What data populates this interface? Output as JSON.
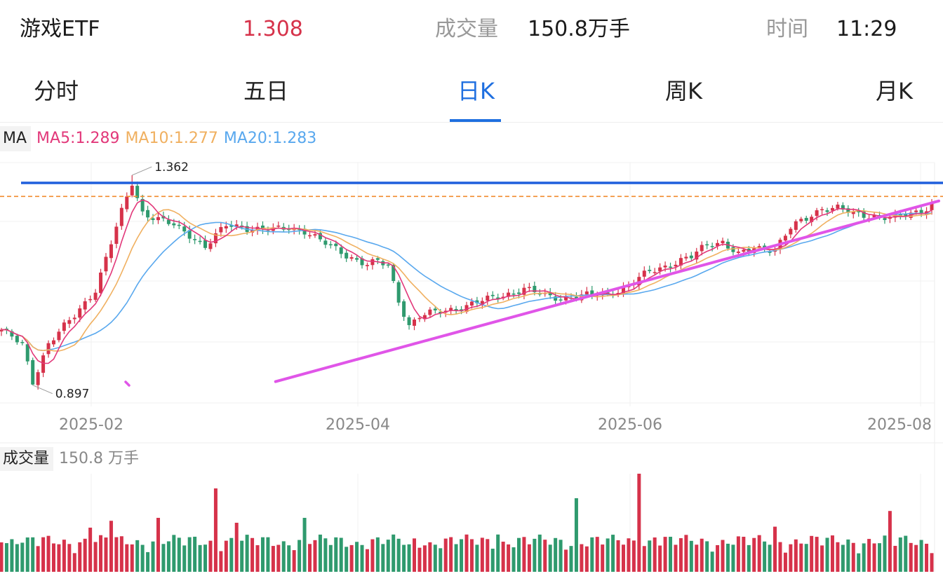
{
  "header": {
    "name": "游戏ETF",
    "price": "1.308",
    "volume_label": "成交量",
    "volume_value": "150.8万手",
    "time_label": "时间",
    "time_value": "11:29"
  },
  "colors": {
    "up": "#d6324a",
    "down": "#2f9a6e",
    "accent": "#1f6fe0",
    "price": "#d6324a",
    "ma5": "#e2387a",
    "ma10": "#f0b060",
    "ma20": "#59a8ee",
    "resistance": "#1f5fdc",
    "trendline": "#e055e8",
    "dashed": "#f08a2c"
  },
  "tabs": [
    {
      "label": "分时",
      "active": false
    },
    {
      "label": "五日",
      "active": false
    },
    {
      "label": "日K",
      "active": true
    },
    {
      "label": "周K",
      "active": false
    },
    {
      "label": "月K",
      "active": false
    }
  ],
  "ma_legend": {
    "tag": "MA",
    "ma5": "MA5:1.289",
    "ma10": "MA10:1.277",
    "ma20": "MA20:1.283"
  },
  "volume_legend": {
    "tag": "成交量",
    "value": "150.8 万手"
  },
  "chart_data": {
    "type": "candlestick",
    "x_tick_labels": [
      "2025-02",
      "2025-04",
      "2025-06",
      "2025-08"
    ],
    "annotations": {
      "high": "1.362",
      "low": "0.897"
    },
    "resistance_level": 1.345,
    "dashed_level": 1.315,
    "trendline": {
      "start": {
        "date": "2025-03-15",
        "value": 0.905
      },
      "end": {
        "date": "2025-08-08",
        "value": 1.305
      }
    },
    "max_price": 1.362,
    "min_price": 0.897
  }
}
